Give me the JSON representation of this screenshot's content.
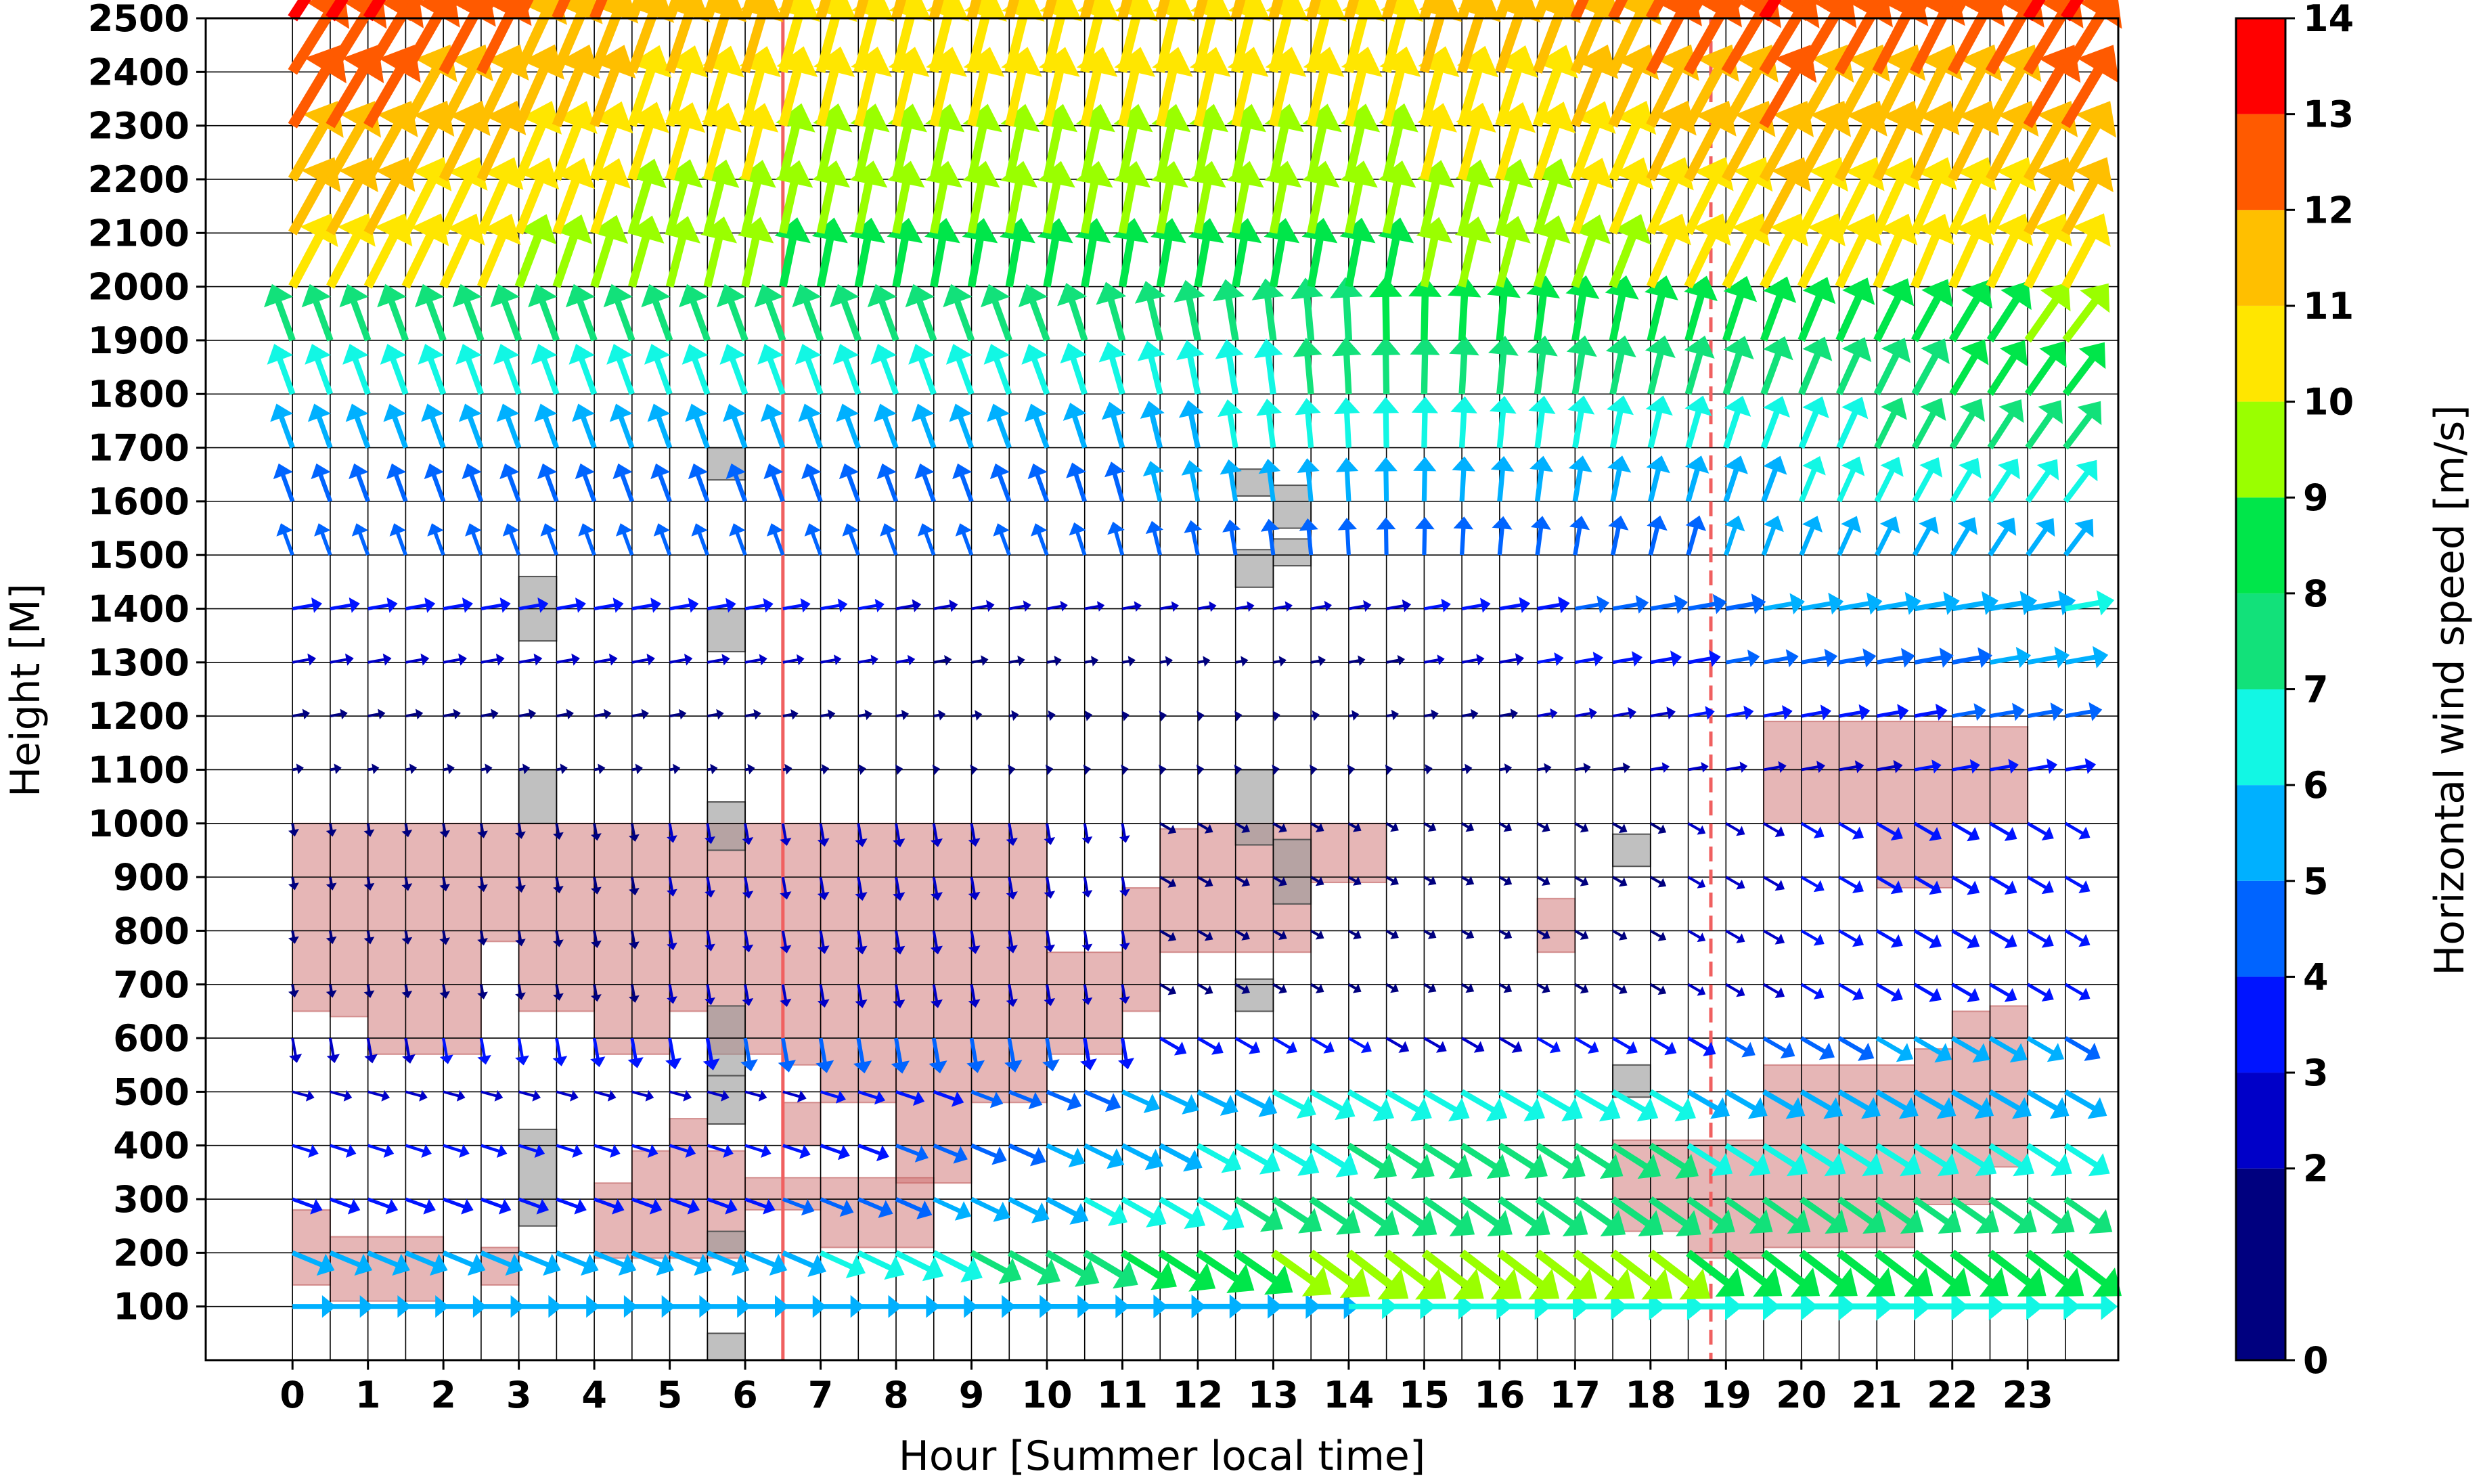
{
  "chart_data": {
    "type": "quiver",
    "title": "",
    "xlabel": "Hour [Summer local time]",
    "ylabel": "Height [M]",
    "colorbar_label": "Horizontal wind speed [m/s]",
    "x_ticks": [
      0,
      1,
      2,
      3,
      4,
      5,
      6,
      7,
      8,
      9,
      10,
      11,
      12,
      13,
      14,
      15,
      16,
      17,
      18,
      19,
      20,
      21,
      22,
      23
    ],
    "y_ticks": [
      100,
      200,
      300,
      400,
      500,
      600,
      700,
      800,
      900,
      1000,
      1100,
      1200,
      1300,
      1400,
      1500,
      1600,
      1700,
      1800,
      1900,
      2000,
      2100,
      2200,
      2300,
      2400,
      2500
    ],
    "xlim": [
      -1.15,
      24.2
    ],
    "ylim": [
      0,
      2500
    ],
    "grid": true,
    "colorbar": {
      "ticks": [
        0,
        2,
        3,
        4,
        5,
        6,
        7,
        8,
        9,
        10,
        11,
        12,
        13,
        14
      ],
      "bounds": [
        0,
        2,
        3,
        4,
        5,
        6,
        7,
        8,
        9,
        10,
        11,
        12,
        13,
        14
      ],
      "colors": [
        "#00007f",
        "#0000c8",
        "#0014ff",
        "#0064ff",
        "#00b0ff",
        "#12f7e4",
        "#12e17a",
        "#00e64a",
        "#9aff00",
        "#ffe600",
        "#ffbf00",
        "#ff5a00",
        "#ff0000",
        "#8f0000"
      ]
    },
    "vertical_lines": [
      {
        "x": 6.5,
        "style": "solid",
        "color": "#f06060"
      },
      {
        "x": 18.8,
        "style": "dashed",
        "color": "#f06060"
      }
    ],
    "cloud_regions": [
      {
        "x0": 0,
        "x1": 0.5,
        "y0": 650,
        "y1": 1000
      },
      {
        "x0": 0.5,
        "x1": 1,
        "y0": 640,
        "y1": 1000
      },
      {
        "x0": 1,
        "x1": 2.5,
        "y0": 570,
        "y1": 1000
      },
      {
        "x0": 2.5,
        "x1": 3,
        "y0": 780,
        "y1": 1000
      },
      {
        "x0": 3,
        "x1": 4,
        "y0": 650,
        "y1": 1000
      },
      {
        "x0": 4,
        "x1": 5,
        "y0": 570,
        "y1": 1000
      },
      {
        "x0": 5,
        "x1": 5.5,
        "y0": 650,
        "y1": 1000
      },
      {
        "x0": 5.5,
        "x1": 6.5,
        "y0": 570,
        "y1": 1000
      },
      {
        "x0": 6.5,
        "x1": 7,
        "y0": 550,
        "y1": 1000
      },
      {
        "x0": 7,
        "x1": 8,
        "y0": 480,
        "y1": 1000
      },
      {
        "x0": 8,
        "x1": 9,
        "y0": 330,
        "y1": 1000
      },
      {
        "x0": 9,
        "x1": 10,
        "y0": 480,
        "y1": 1000
      },
      {
        "x0": 10,
        "x1": 11,
        "y0": 570,
        "y1": 760
      },
      {
        "x0": 11,
        "x1": 11.5,
        "y0": 650,
        "y1": 880
      },
      {
        "x0": 11.5,
        "x1": 12,
        "y0": 760,
        "y1": 990
      },
      {
        "x0": 12,
        "x1": 13.5,
        "y0": 760,
        "y1": 1000
      },
      {
        "x0": 13.5,
        "x1": 14.5,
        "y0": 890,
        "y1": 1000
      },
      {
        "x0": 16.5,
        "x1": 17,
        "y0": 760,
        "y1": 860
      },
      {
        "x0": 0,
        "x1": 0.5,
        "y0": 140,
        "y1": 280
      },
      {
        "x0": 0.5,
        "x1": 2,
        "y0": 110,
        "y1": 230
      },
      {
        "x0": 2.5,
        "x1": 3,
        "y0": 140,
        "y1": 210
      },
      {
        "x0": 4,
        "x1": 4.5,
        "y0": 190,
        "y1": 330
      },
      {
        "x0": 4.5,
        "x1": 5,
        "y0": 190,
        "y1": 390
      },
      {
        "x0": 5,
        "x1": 5.5,
        "y0": 190,
        "y1": 450
      },
      {
        "x0": 5.5,
        "x1": 6,
        "y0": 190,
        "y1": 390
      },
      {
        "x0": 6,
        "x1": 7,
        "y0": 280,
        "y1": 340
      },
      {
        "x0": 6.5,
        "x1": 7,
        "y0": 400,
        "y1": 480
      },
      {
        "x0": 7,
        "x1": 8.5,
        "y0": 210,
        "y1": 340
      },
      {
        "x0": 17.5,
        "x1": 18.5,
        "y0": 240,
        "y1": 410
      },
      {
        "x0": 18.5,
        "x1": 19.5,
        "y0": 190,
        "y1": 410
      },
      {
        "x0": 19.5,
        "x1": 21.5,
        "y0": 210,
        "y1": 550
      },
      {
        "x0": 21.5,
        "x1": 22,
        "y0": 290,
        "y1": 580
      },
      {
        "x0": 22,
        "x1": 22.5,
        "y0": 290,
        "y1": 650
      },
      {
        "x0": 22.5,
        "x1": 23,
        "y0": 360,
        "y1": 660
      },
      {
        "x0": 19.5,
        "x1": 21,
        "y0": 1000,
        "y1": 1190
      },
      {
        "x0": 21,
        "x1": 22,
        "y0": 880,
        "y1": 1190
      },
      {
        "x0": 22,
        "x1": 23,
        "y0": 1000,
        "y1": 1180
      }
    ],
    "missing_data": [
      {
        "x0": 5.5,
        "x1": 6,
        "y0": 1640,
        "y1": 1700
      },
      {
        "x0": 12.5,
        "x1": 13,
        "y0": 1610,
        "y1": 1660
      },
      {
        "x0": 13,
        "x1": 13.5,
        "y0": 1550,
        "y1": 1630
      },
      {
        "x0": 13,
        "x1": 13.5,
        "y0": 1480,
        "y1": 1530
      },
      {
        "x0": 12.5,
        "x1": 13,
        "y0": 1440,
        "y1": 1510
      },
      {
        "x0": 3,
        "x1": 3.5,
        "y0": 1340,
        "y1": 1460
      },
      {
        "x0": 5.5,
        "x1": 6,
        "y0": 1320,
        "y1": 1400
      },
      {
        "x0": 3,
        "x1": 3.5,
        "y0": 1000,
        "y1": 1100
      },
      {
        "x0": 5.5,
        "x1": 6,
        "y0": 950,
        "y1": 1040
      },
      {
        "x0": 12.5,
        "x1": 13,
        "y0": 960,
        "y1": 1100
      },
      {
        "x0": 13,
        "x1": 13.5,
        "y0": 850,
        "y1": 970
      },
      {
        "x0": 17.5,
        "x1": 18,
        "y0": 920,
        "y1": 980
      },
      {
        "x0": 12.5,
        "x1": 13,
        "y0": 650,
        "y1": 710
      },
      {
        "x0": 5.5,
        "x1": 6,
        "y0": 530,
        "y1": 660
      },
      {
        "x0": 5.5,
        "x1": 6,
        "y0": 440,
        "y1": 530
      },
      {
        "x0": 17.5,
        "x1": 18,
        "y0": 490,
        "y1": 550
      },
      {
        "x0": 3,
        "x1": 3.5,
        "y0": 250,
        "y1": 430
      },
      {
        "x0": 5.5,
        "x1": 6,
        "y0": 200,
        "y1": 240
      },
      {
        "x0": 5.5,
        "x1": 6,
        "y0": 0,
        "y1": 50
      }
    ],
    "wind_field_description_levels": [
      {
        "height_min": 2000,
        "height_max": 2500,
        "speed_ms": "9-13",
        "direction": "toward upper right (south-westerly)"
      },
      {
        "height_min": 1500,
        "height_max": 1900,
        "speed_ms": "4-8",
        "direction": "toward upper left / up"
      },
      {
        "height_min": 1100,
        "height_max": 1400,
        "speed_ms": "2-6",
        "direction": "mostly toward right"
      },
      {
        "height_min": 600,
        "height_max": 1000,
        "speed_ms": "0-5",
        "direction": "mostly down / lower right"
      },
      {
        "height_min": 100,
        "height_max": 500,
        "speed_ms": "3-9",
        "direction": "toward right / lower right"
      }
    ]
  }
}
